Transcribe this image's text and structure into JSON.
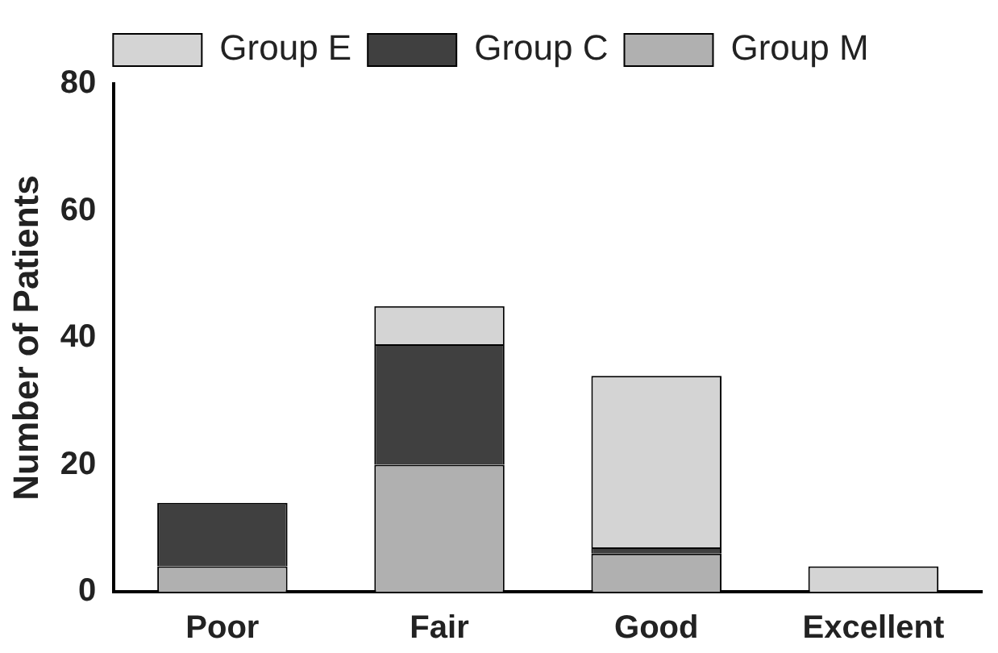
{
  "chart_data": {
    "type": "bar",
    "ylabel": "Number of Patients",
    "categories": [
      "Poor",
      "Fair",
      "Good",
      "Excellent"
    ],
    "stacked": true,
    "series": [
      {
        "name": "Group M",
        "color": "#b0b0b0",
        "values": [
          4,
          20,
          6,
          0
        ]
      },
      {
        "name": "Group C",
        "color": "#404040",
        "values": [
          10,
          19,
          1,
          0
        ]
      },
      {
        "name": "Group E",
        "color": "#d4d4d4",
        "values": [
          0,
          6,
          27,
          4
        ]
      }
    ],
    "ylim": [
      0,
      80
    ],
    "yticks": [
      0,
      20,
      40,
      60,
      80
    ],
    "grid": false,
    "legend": "top"
  }
}
